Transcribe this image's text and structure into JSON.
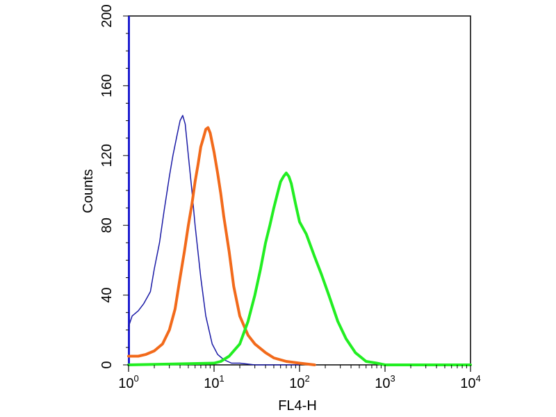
{
  "chart_data": {
    "type": "line",
    "title": "",
    "xlabel": "FL4-H",
    "ylabel": "Counts",
    "x_scale": "log",
    "xlim": [
      1,
      10000
    ],
    "ylim": [
      0,
      200
    ],
    "grid": false,
    "legend": "none",
    "x_ticks": [
      {
        "value": 1,
        "base": "10",
        "exp": "0"
      },
      {
        "value": 10,
        "base": "10",
        "exp": "1"
      },
      {
        "value": 100,
        "base": "10",
        "exp": "2"
      },
      {
        "value": 1000,
        "base": "10",
        "exp": "3"
      },
      {
        "value": 10000,
        "base": "10",
        "exp": "4"
      }
    ],
    "y_ticks": [
      {
        "value": 0,
        "label": "0"
      },
      {
        "value": 40,
        "label": "40"
      },
      {
        "value": 80,
        "label": "80"
      },
      {
        "value": 120,
        "label": "120"
      },
      {
        "value": 160,
        "label": "160"
      },
      {
        "value": 200,
        "label": "200"
      }
    ],
    "series": [
      {
        "color": "#1a1aa6",
        "line": "thin",
        "x": [
          1.0,
          1.1,
          1.3,
          1.5,
          1.8,
          2.0,
          2.3,
          2.6,
          3.0,
          3.3,
          3.7,
          4.0,
          4.3,
          4.6,
          5.0,
          5.5,
          6.0,
          7.0,
          8.0,
          9.5,
          11,
          13,
          16,
          20,
          30,
          50,
          80,
          100
        ],
        "y": [
          22,
          28,
          31,
          35,
          42,
          55,
          70,
          88,
          108,
          120,
          132,
          140,
          143,
          138,
          120,
          100,
          80,
          50,
          28,
          12,
          6,
          3,
          1,
          1,
          0,
          0,
          0,
          0
        ]
      },
      {
        "color": "#f26a1b",
        "line": "thick",
        "x": [
          1.0,
          1.3,
          1.6,
          2.0,
          2.5,
          3.0,
          3.5,
          4.0,
          4.5,
          5.0,
          5.5,
          6.0,
          6.5,
          7.0,
          7.5,
          8.0,
          8.5,
          9.0,
          10,
          11,
          12,
          13,
          15,
          17,
          20,
          25,
          30,
          40,
          50,
          70,
          100,
          150
        ],
        "y": [
          5,
          5,
          6,
          8,
          12,
          20,
          32,
          50,
          65,
          80,
          92,
          105,
          115,
          125,
          130,
          135,
          136,
          133,
          122,
          110,
          98,
          85,
          65,
          45,
          28,
          17,
          12,
          7,
          4,
          2,
          1,
          0
        ]
      },
      {
        "color": "#22ee22",
        "line": "thick",
        "x": [
          1,
          10,
          12,
          15,
          20,
          25,
          30,
          35,
          40,
          45,
          50,
          55,
          60,
          65,
          70,
          75,
          80,
          90,
          100,
          120,
          150,
          180,
          220,
          280,
          350,
          450,
          600,
          800,
          1000,
          10000
        ],
        "y": [
          0,
          1,
          2,
          5,
          12,
          25,
          40,
          55,
          70,
          80,
          90,
          98,
          105,
          108,
          110,
          108,
          104,
          92,
          82,
          75,
          62,
          52,
          40,
          25,
          15,
          7,
          2,
          1,
          0,
          0
        ]
      }
    ]
  }
}
